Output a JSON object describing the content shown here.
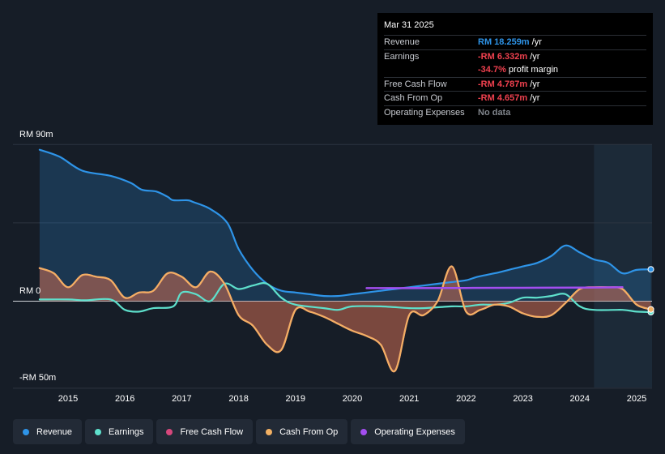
{
  "tooltip": {
    "date": "Mar 31 2025",
    "rows": [
      {
        "label": "Revenue",
        "value": "RM 18.259m",
        "unit": " /yr",
        "color": "#2e94e8"
      },
      {
        "label": "Earnings",
        "value": "-RM 6.332m",
        "unit": " /yr",
        "color": "#f0414f"
      },
      {
        "label": "",
        "value": "-34.7%",
        "unit": " profit margin",
        "color": "#f0414f"
      },
      {
        "label": "Free Cash Flow",
        "value": "-RM 4.787m",
        "unit": " /yr",
        "color": "#f0414f"
      },
      {
        "label": "Cash From Op",
        "value": "-RM 4.657m",
        "unit": " /yr",
        "color": "#f0414f"
      },
      {
        "label": "Operating Expenses",
        "value": "No data",
        "unit": "",
        "color": "#80858c"
      }
    ]
  },
  "legend": [
    {
      "label": "Revenue",
      "color": "#2e94e8"
    },
    {
      "label": "Earnings",
      "color": "#5ee0cc"
    },
    {
      "label": "Free Cash Flow",
      "color": "#d6477c"
    },
    {
      "label": "Cash From Op",
      "color": "#f2b063"
    },
    {
      "label": "Operating Expenses",
      "color": "#a34ef0"
    }
  ],
  "chart_data": {
    "type": "area",
    "title": "",
    "xlabel": "",
    "ylabel": "",
    "ylim": [
      -50,
      90
    ],
    "y_tick_labels": [
      "RM 90m",
      "RM 0",
      "-RM 50m"
    ],
    "y_ticks": [
      90,
      0,
      -50
    ],
    "x_tick_labels": [
      "2015",
      "2016",
      "2017",
      "2018",
      "2019",
      "2020",
      "2021",
      "2022",
      "2023",
      "2024",
      "2025"
    ],
    "x_ticks": [
      2015,
      2016,
      2017,
      2018,
      2019,
      2020,
      2021,
      2022,
      2023,
      2024,
      2025
    ],
    "forecast_from": 2024.25,
    "series": [
      {
        "name": "Revenue",
        "color": "#2e94e8",
        "x": [
          2014.5,
          2014.85,
          2015.25,
          2015.75,
          2016.1,
          2016.3,
          2016.55,
          2016.75,
          2016.85,
          2017.1,
          2017.2,
          2017.5,
          2017.8,
          2018.0,
          2018.25,
          2018.5,
          2018.75,
          2019.0,
          2019.25,
          2019.5,
          2019.75,
          2020.0,
          2020.25,
          2020.5,
          2020.75,
          2021.0,
          2021.25,
          2021.5,
          2021.75,
          2022.0,
          2022.2,
          2022.5,
          2022.75,
          2023.0,
          2023.25,
          2023.5,
          2023.75,
          2024.0,
          2024.25,
          2024.5,
          2024.75,
          2025.0,
          2025.25
        ],
        "values": [
          87,
          83,
          75,
          72,
          68,
          64,
          63,
          60,
          58,
          58,
          57,
          53,
          45,
          30,
          18,
          10,
          6,
          5,
          4,
          3,
          3,
          4,
          5,
          6,
          7,
          8,
          9,
          10,
          11,
          12,
          14,
          16,
          18,
          20,
          22,
          26,
          32,
          28,
          24,
          22,
          16,
          18,
          18.3
        ]
      },
      {
        "name": "Earnings",
        "color": "#5ee0cc",
        "x": [
          2014.5,
          2015.0,
          2015.3,
          2015.75,
          2016.0,
          2016.25,
          2016.5,
          2016.85,
          2017.0,
          2017.25,
          2017.5,
          2017.75,
          2018.0,
          2018.25,
          2018.5,
          2018.75,
          2019.0,
          2019.5,
          2019.75,
          2020.0,
          2020.5,
          2021.0,
          2021.25,
          2021.75,
          2022.0,
          2022.25,
          2022.5,
          2022.75,
          2023.0,
          2023.25,
          2023.5,
          2023.75,
          2024.0,
          2024.25,
          2024.75,
          2025.0,
          2025.25
        ],
        "values": [
          1,
          1,
          0.5,
          1,
          -5,
          -6,
          -4,
          -3,
          5,
          4,
          0,
          10,
          7,
          9,
          10,
          2,
          -2,
          -4,
          -5,
          -3,
          -3,
          -4,
          -4,
          -3,
          -3,
          -2,
          -2,
          -1,
          2,
          2,
          3,
          4,
          -3,
          -5,
          -5,
          -6,
          -6.3
        ]
      },
      {
        "name": "Free Cash Flow",
        "color": "#d6477c",
        "x": [
          2014.5,
          2014.75,
          2015.0,
          2015.25,
          2015.5,
          2015.75,
          2016.0,
          2016.25,
          2016.5,
          2016.75,
          2017.0,
          2017.25,
          2017.5,
          2017.75,
          2018.0,
          2018.25,
          2018.5,
          2018.75,
          2019.0,
          2019.25,
          2019.5,
          2019.75,
          2020.0,
          2020.25,
          2020.5,
          2020.75,
          2021.0,
          2021.25,
          2021.5,
          2021.75,
          2022.0,
          2022.25,
          2022.5,
          2022.75,
          2023.0,
          2023.25,
          2023.5,
          2023.75,
          2024.0,
          2024.25,
          2024.5,
          2024.75,
          2025.0,
          2025.25
        ],
        "values": [
          19,
          16,
          8,
          15,
          14,
          12,
          2,
          5,
          6,
          16,
          14,
          8,
          17,
          10,
          -8,
          -14,
          -25,
          -28,
          -5,
          -6,
          -9,
          -13,
          -17,
          -20,
          -25,
          -40,
          -8,
          -8,
          0,
          20,
          -6,
          -5,
          -2,
          -3,
          -7,
          -9,
          -8,
          -1,
          7,
          8,
          8,
          7,
          -2,
          -4.8
        ]
      },
      {
        "name": "Cash From Op",
        "color": "#f2b063",
        "x": [
          2014.5,
          2014.75,
          2015.0,
          2015.25,
          2015.5,
          2015.75,
          2016.0,
          2016.25,
          2016.5,
          2016.75,
          2017.0,
          2017.25,
          2017.5,
          2017.75,
          2018.0,
          2018.25,
          2018.5,
          2018.75,
          2019.0,
          2019.25,
          2019.5,
          2019.75,
          2020.0,
          2020.25,
          2020.5,
          2020.75,
          2021.0,
          2021.25,
          2021.5,
          2021.75,
          2022.0,
          2022.25,
          2022.5,
          2022.75,
          2023.0,
          2023.25,
          2023.5,
          2023.75,
          2024.0,
          2024.25,
          2024.5,
          2024.75,
          2025.0,
          2025.25
        ],
        "values": [
          19,
          16,
          8,
          15,
          14,
          12,
          2,
          5,
          6,
          16,
          14,
          8,
          17,
          10,
          -8,
          -14,
          -25,
          -28,
          -5,
          -6,
          -9,
          -13,
          -17,
          -20,
          -25,
          -40,
          -8,
          -8,
          0,
          20,
          -6,
          -5,
          -2,
          -3,
          -7,
          -9,
          -8,
          -1,
          7,
          8,
          8,
          7,
          -2,
          -4.7
        ]
      },
      {
        "name": "Operating Expenses",
        "color": "#a34ef0",
        "x": [
          2020.25,
          2021.0,
          2022.0,
          2023.0,
          2024.0,
          2024.75
        ],
        "values": [
          7.5,
          7.5,
          7.6,
          7.7,
          7.8,
          8
        ]
      }
    ]
  }
}
